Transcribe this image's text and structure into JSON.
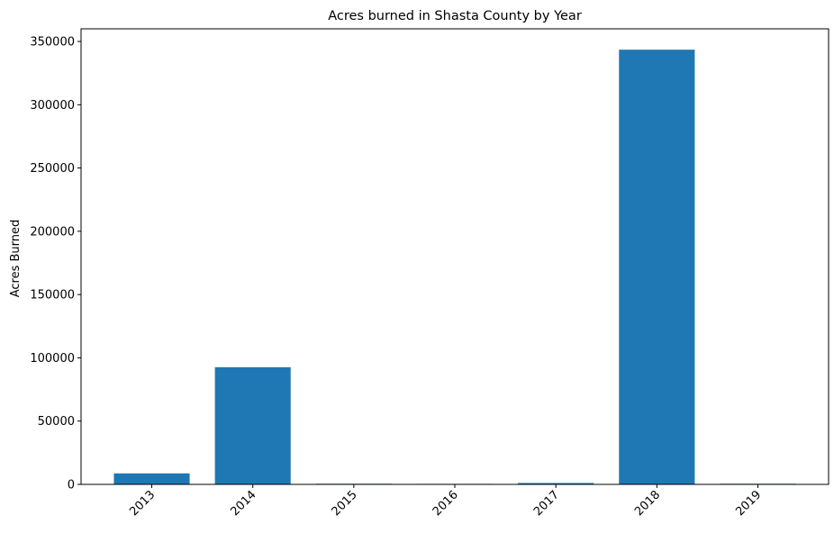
{
  "chart_data": {
    "type": "bar",
    "title": "Acres burned in Shasta County by Year",
    "xlabel": "",
    "ylabel": "Acres Burned",
    "categories": [
      "2013",
      "2014",
      "2015",
      "2016",
      "2017",
      "2018",
      "2019"
    ],
    "values": [
      8700,
      92600,
      500,
      400,
      1100,
      343500,
      500
    ],
    "ylim": [
      0,
      360000
    ],
    "yticks": [
      0,
      50000,
      100000,
      150000,
      200000,
      250000,
      300000,
      350000
    ],
    "ytick_labels": [
      "0",
      "50000",
      "100000",
      "150000",
      "200000",
      "250000",
      "300000",
      "350000"
    ],
    "bar_color": "#1f77b4",
    "grid": false,
    "x_tick_rotation": "45 degrees"
  }
}
